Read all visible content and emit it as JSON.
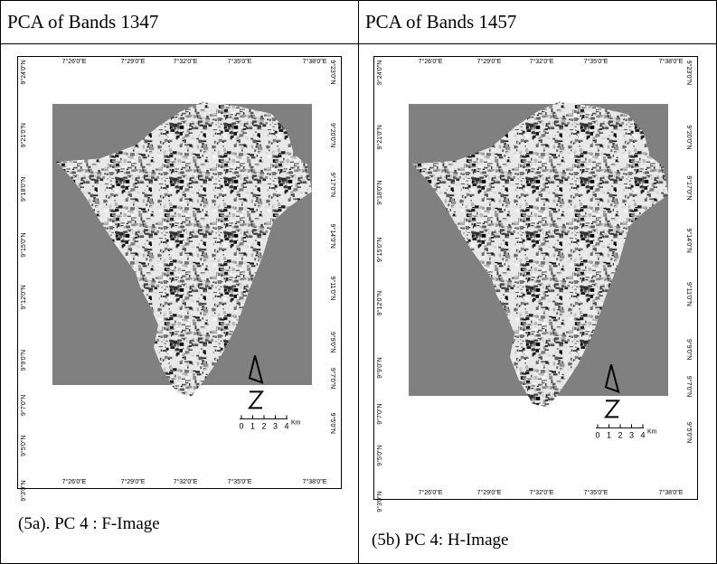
{
  "header": {
    "left": "PCA of Bands 1347",
    "right": "PCA of Bands 1457"
  },
  "maps": [
    {
      "caption": "(5a).  PC 4 : F-Image"
    },
    {
      "caption": "(5b) PC 4: H-Image"
    }
  ],
  "axes": {
    "top": [
      "7°26'0\"E",
      "7°29'0\"E",
      "7°32'0\"E",
      "7°35'0\"E",
      "7°38'0\"E"
    ],
    "left": [
      "9°24'0\"N",
      "9°21'0\"N",
      "9°18'0\"N",
      "9°15'0\"N",
      "9°12'0\"N",
      "9°9'0\"N",
      "9°7'0\"N",
      "9°5'0\"N",
      "9°3'0\"N"
    ],
    "right": [
      "9°23'0\"N",
      "9°20'0\"N",
      "9°17'0\"N",
      "9°14'0\"N",
      "9°11'0\"N",
      "9°9'0\"N",
      "9°7'0\"N",
      "9°5'0\"N"
    ]
  },
  "scale": {
    "ticks": [
      "0",
      "1",
      "2",
      "3",
      "4"
    ],
    "unit": "Km"
  }
}
